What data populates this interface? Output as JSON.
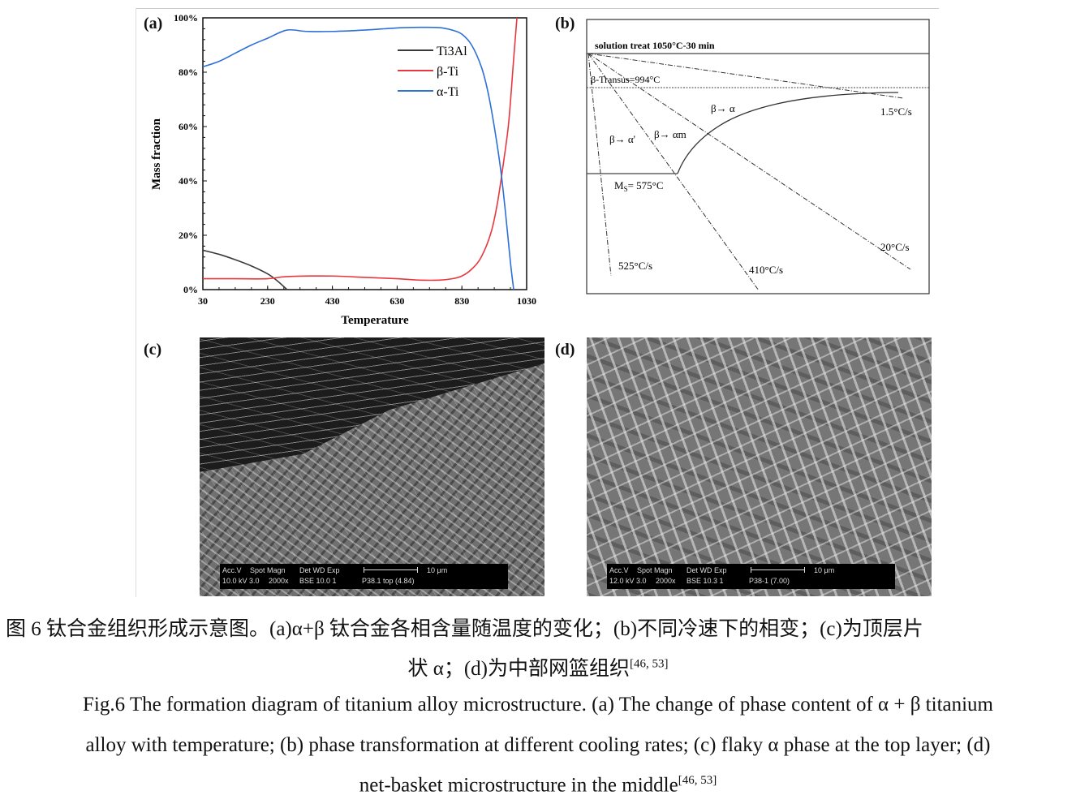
{
  "panel_a": {
    "label": "(a)",
    "chart_data": {
      "type": "line",
      "xlabel": "Temperature",
      "ylabel": "Mass fraction",
      "xlim": [
        30,
        1030
      ],
      "ylim": [
        0,
        100
      ],
      "x_ticks": [
        "30",
        "230",
        "430",
        "630",
        "830",
        "1030"
      ],
      "y_ticks": [
        "0%",
        "20%",
        "40%",
        "60%",
        "80%",
        "100%"
      ],
      "legend_position": "top-right",
      "series": [
        {
          "name": "Ti3Al",
          "color": "#3a3a3a",
          "x": [
            30,
            80,
            130,
            180,
            230,
            260,
            290
          ],
          "y": [
            14.5,
            13,
            11,
            8.7,
            5.8,
            3.2,
            0
          ]
        },
        {
          "name": "β-Ti",
          "color": "#e8383d",
          "x": [
            30,
            130,
            230,
            290,
            430,
            530,
            630,
            700,
            760,
            800,
            830,
            860,
            890,
            920,
            940,
            960,
            975,
            990,
            1000
          ],
          "y": [
            4,
            4,
            4,
            4.8,
            5,
            4.5,
            4,
            3.5,
            3.5,
            4,
            5,
            7.5,
            12,
            21,
            32,
            48,
            62,
            85,
            100
          ]
        },
        {
          "name": "α-Ti",
          "color": "#2e6fd8",
          "x": [
            30,
            80,
            130,
            180,
            230,
            290,
            350,
            430,
            530,
            630,
            700,
            760,
            800,
            830,
            860,
            890,
            910,
            930,
            950,
            965,
            980,
            990
          ],
          "y": [
            82,
            84,
            87,
            90,
            92.5,
            95.5,
            95,
            95,
            95.5,
            96.3,
            96.5,
            96.4,
            95.5,
            94,
            90,
            82,
            73,
            60,
            44,
            28,
            10,
            0
          ]
        }
      ]
    }
  },
  "panel_b": {
    "label": "(b)",
    "solution_treat": "solution treat 1050°C-30 min",
    "beta_transus": "β-Transus=994°C",
    "ms_prefix": "M",
    "ms_sub": "S",
    "ms_value": "= 575°C",
    "region_beta_alpha": "β→ α",
    "region_beta_alpha_prime": "β→ α'",
    "region_beta_alpha_m": "β→ αm",
    "rates": [
      "1.5°C/s",
      "20°C/s",
      "410°C/s",
      "525°C/s"
    ]
  },
  "panel_c": {
    "label": "(c)",
    "info": {
      "h1": "Acc.V",
      "h2": "Spot Magn",
      "h3": "Det  WD  Exp",
      "scale": "10 μm",
      "v1": "10.0 kV 3.0",
      "v2": "2000x",
      "v3": "BSE 10.0  1",
      "v4": "P38.1 top (4.84)"
    }
  },
  "panel_d": {
    "label": "(d)",
    "info": {
      "h1": "Acc.V",
      "h2": "Spot Magn",
      "h3": "Det  WD  Exp",
      "scale": "10 μm",
      "v1": "12.0 kV 3.0",
      "v2": "2000x",
      "v3": "BSE 10.3  1",
      "v4": "P38-1  (7.00)"
    }
  },
  "caption": {
    "cn_line1": "图  6  钛合金组织形成示意图。(a)α+β 钛合金各相含量随温度的变化；(b)不同冷速下的相变；(c)为顶层片",
    "cn_line2": "状 α；(d)为中部网篮组织",
    "cn_ref": "[46, 53]",
    "en_line1": "Fig.6 The formation diagram of titanium alloy microstructure. (a) The change of phase content of α + β titanium",
    "en_line2": "alloy with temperature; (b) phase transformation at different cooling rates; (c) flaky α phase at the top layer; (d)",
    "en_line3": "net-basket microstructure in the middle",
    "en_ref": "[46, 53]"
  }
}
